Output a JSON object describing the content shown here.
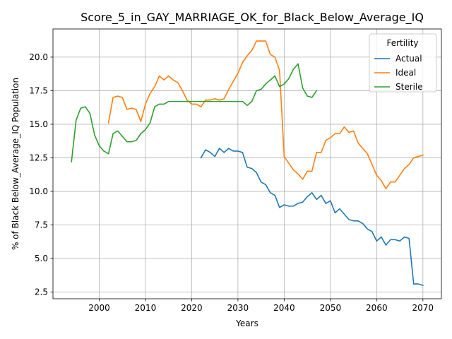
{
  "chart_data": {
    "type": "line",
    "title": "Score_5_in_GAY_MARRIAGE_OK_for_Black_Below_Average_IQ",
    "xlabel": "Years",
    "ylabel": "% of Black Below_Average_IQ Population",
    "xlim": [
      1990,
      2074
    ],
    "ylim": [
      2.0,
      22.1
    ],
    "xticks": [
      2000,
      2010,
      2020,
      2030,
      2040,
      2050,
      2060,
      2070
    ],
    "yticks": [
      2.5,
      5.0,
      7.5,
      10.0,
      12.5,
      15.0,
      17.5,
      20.0
    ],
    "xtick_labels": [
      "2000",
      "2010",
      "2020",
      "2030",
      "2040",
      "2050",
      "2060",
      "2070"
    ],
    "ytick_labels": [
      "2.5",
      "5.0",
      "7.5",
      "10.0",
      "12.5",
      "15.0",
      "17.5",
      "20.0"
    ],
    "grid": true,
    "legend": {
      "title": "Fertility",
      "position": "top-right"
    },
    "series": [
      {
        "name": "Actual",
        "color": "#1f77b4",
        "x": [
          2022,
          2023,
          2024,
          2025,
          2026,
          2027,
          2028,
          2029,
          2030,
          2031,
          2032,
          2033,
          2034,
          2035,
          2036,
          2037,
          2038,
          2039,
          2040,
          2041,
          2042,
          2043,
          2044,
          2045,
          2046,
          2047,
          2048,
          2049,
          2050,
          2051,
          2052,
          2053,
          2054,
          2055,
          2056,
          2057,
          2058,
          2059,
          2060,
          2061,
          2062,
          2063,
          2064,
          2065,
          2066,
          2067,
          2068,
          2069,
          2070
        ],
        "y": [
          12.5,
          13.1,
          12.9,
          12.6,
          13.2,
          12.9,
          13.2,
          13.0,
          13.0,
          12.9,
          11.8,
          11.7,
          11.4,
          10.7,
          10.5,
          9.9,
          9.7,
          8.8,
          9.0,
          8.9,
          8.9,
          9.1,
          9.2,
          9.6,
          9.9,
          9.4,
          9.7,
          9.1,
          9.3,
          8.4,
          8.7,
          8.3,
          7.9,
          7.8,
          7.8,
          7.6,
          7.2,
          7.0,
          6.3,
          6.6,
          6.0,
          6.4,
          6.4,
          6.3,
          6.6,
          6.5,
          3.1,
          3.1,
          3.0
        ]
      },
      {
        "name": "Ideal",
        "color": "#ff7f0e",
        "x": [
          2002,
          2003,
          2004,
          2005,
          2006,
          2007,
          2008,
          2009,
          2010,
          2011,
          2012,
          2013,
          2014,
          2015,
          2016,
          2017,
          2018,
          2019,
          2020,
          2021,
          2022,
          2023,
          2024,
          2025,
          2026,
          2027,
          2028,
          2029,
          2030,
          2031,
          2032,
          2033,
          2034,
          2035,
          2036,
          2037,
          2038,
          2039,
          2040,
          2041,
          2042,
          2043,
          2044,
          2045,
          2046,
          2047,
          2048,
          2049,
          2050,
          2051,
          2052,
          2053,
          2054,
          2055,
          2056,
          2057,
          2058,
          2059,
          2060,
          2061,
          2062,
          2063,
          2064,
          2065,
          2066,
          2067,
          2068,
          2069,
          2070
        ],
        "y": [
          15.1,
          17.0,
          17.1,
          17.0,
          16.1,
          16.2,
          16.1,
          15.2,
          16.5,
          17.3,
          17.8,
          18.6,
          18.3,
          18.6,
          18.3,
          18.1,
          17.5,
          16.8,
          16.5,
          16.5,
          16.3,
          16.8,
          16.8,
          16.9,
          16.8,
          16.9,
          17.6,
          18.2,
          18.8,
          19.6,
          20.1,
          20.5,
          21.2,
          21.2,
          21.2,
          20.2,
          20.0,
          19.0,
          12.6,
          12.1,
          11.6,
          11.3,
          10.9,
          11.5,
          11.5,
          12.9,
          12.9,
          13.8,
          14.0,
          14.3,
          14.3,
          14.8,
          14.4,
          14.5,
          13.6,
          13.2,
          12.8,
          12.0,
          11.2,
          10.8,
          10.2,
          10.7,
          10.7,
          11.2,
          11.7,
          12.0,
          12.5,
          12.6,
          12.7
        ]
      },
      {
        "name": "Sterile",
        "color": "#2ca02c",
        "x": [
          1994,
          1995,
          1996,
          1997,
          1998,
          1999,
          2000,
          2001,
          2002,
          2003,
          2004,
          2005,
          2006,
          2007,
          2008,
          2009,
          2010,
          2011,
          2012,
          2013,
          2014,
          2015,
          2016,
          2017,
          2018,
          2019,
          2020,
          2021,
          2022,
          2023,
          2024,
          2025,
          2026,
          2027,
          2028,
          2029,
          2030,
          2031,
          2032,
          2033,
          2034,
          2035,
          2036,
          2037,
          2038,
          2039,
          2040,
          2041,
          2042,
          2043,
          2044,
          2045,
          2046,
          2047
        ],
        "y": [
          12.2,
          15.3,
          16.2,
          16.3,
          15.8,
          14.2,
          13.4,
          13.0,
          12.8,
          14.3,
          14.5,
          14.1,
          13.7,
          13.7,
          13.8,
          14.3,
          14.6,
          15.1,
          16.3,
          16.5,
          16.5,
          16.7,
          16.7,
          16.7,
          16.7,
          16.7,
          16.7,
          16.7,
          16.7,
          16.7,
          16.7,
          16.7,
          16.7,
          16.7,
          16.7,
          16.7,
          16.7,
          16.7,
          16.4,
          16.7,
          17.5,
          17.6,
          18.0,
          18.3,
          18.6,
          17.8,
          18.0,
          18.4,
          19.1,
          19.5,
          17.7,
          17.1,
          17.0,
          17.5
        ]
      }
    ]
  }
}
